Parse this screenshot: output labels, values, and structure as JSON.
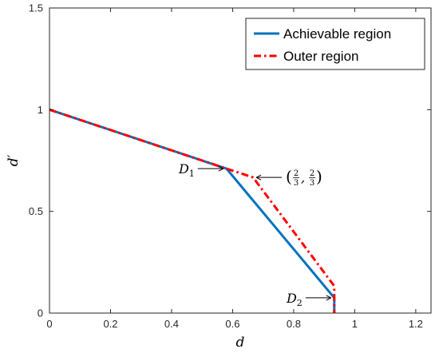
{
  "chart_data": {
    "type": "line",
    "title": "",
    "xlabel": "d",
    "ylabel": "d′",
    "xlim": [
      0,
      1.25
    ],
    "ylim": [
      0,
      1.5
    ],
    "xticks": [
      0,
      0.2,
      0.4,
      0.6,
      0.8,
      1,
      1.2
    ],
    "yticks": [
      0,
      0.5,
      1,
      1.5
    ],
    "xtick_labels": [
      "0",
      "0.2",
      "0.4",
      "0.6",
      "0.8",
      "1",
      "1.2"
    ],
    "ytick_labels": [
      "0",
      "0.5",
      "1",
      "1.5"
    ],
    "grid": false,
    "legend_position": "top-right",
    "series": [
      {
        "name": "Achievable region",
        "color": "#0072BD",
        "style": "solid",
        "x": [
          0,
          0.58,
          0.933,
          0.933
        ],
        "y": [
          1,
          0.71,
          0.075,
          0
        ]
      },
      {
        "name": "Outer region",
        "color": "#FF0000",
        "style": "dashdot",
        "x": [
          0,
          0.58,
          0.667,
          0.933,
          0.933
        ],
        "y": [
          1,
          0.71,
          0.667,
          0.133,
          0
        ]
      }
    ],
    "annotations": [
      {
        "id": "d1",
        "label": "D",
        "subscript": "1",
        "x": 0.58,
        "y": 0.71,
        "side": "left"
      },
      {
        "id": "point",
        "label": "(2/3, 2/3)",
        "num1": "2",
        "den1": "3",
        "num2": "2",
        "den2": "3",
        "x": 0.667,
        "y": 0.667,
        "side": "right"
      },
      {
        "id": "d2",
        "label": "D",
        "subscript": "2",
        "x": 0.933,
        "y": 0.075,
        "side": "left"
      }
    ]
  }
}
